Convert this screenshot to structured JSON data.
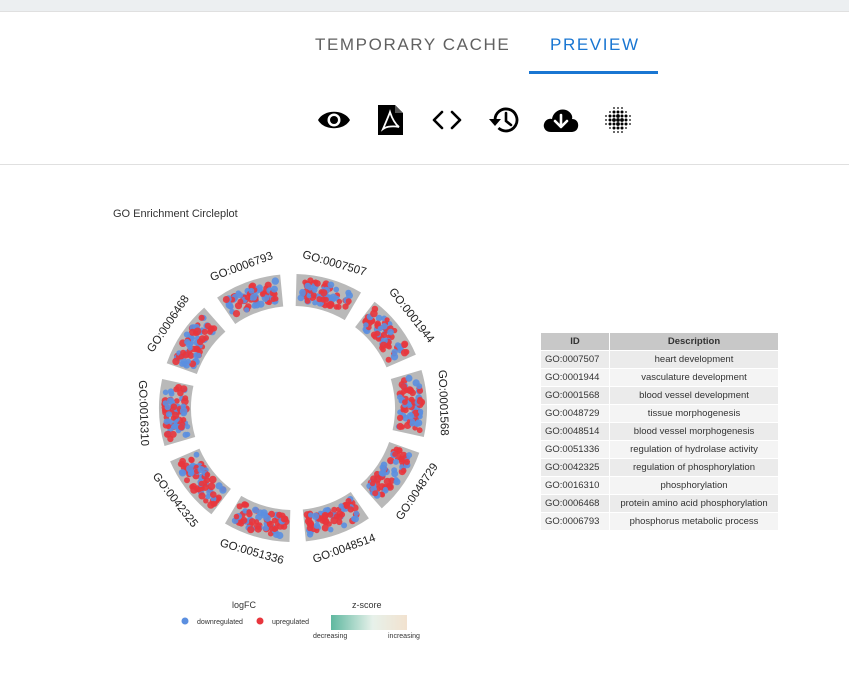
{
  "tabs": [
    {
      "label": "TEMPORARY CACHE",
      "active": false
    },
    {
      "label": "PREVIEW",
      "active": true
    }
  ],
  "toolbar": [
    {
      "icon": "eye-icon"
    },
    {
      "icon": "pdf-icon"
    },
    {
      "icon": "code-icon"
    },
    {
      "icon": "history-icon"
    },
    {
      "icon": "cloud-download-icon"
    },
    {
      "icon": "dots-grid-icon"
    }
  ],
  "plot": {
    "title": "GO Enrichment Circleplot",
    "sectors": [
      "GO:0007507",
      "GO:0001944",
      "GO:0001568",
      "GO:0048729",
      "GO:0048514",
      "GO:0051336",
      "GO:0042325",
      "GO:0016310",
      "GO:0006468",
      "GO:0006793"
    ],
    "table": {
      "headers": [
        "ID",
        "Description"
      ],
      "rows": [
        [
          "GO:0007507",
          "heart development"
        ],
        [
          "GO:0001944",
          "vasculature development"
        ],
        [
          "GO:0001568",
          "blood vessel development"
        ],
        [
          "GO:0048729",
          "tissue morphogenesis"
        ],
        [
          "GO:0048514",
          "blood vessel morphogenesis"
        ],
        [
          "GO:0051336",
          "regulation of hydrolase activity"
        ],
        [
          "GO:0042325",
          "regulation of phosphorylation"
        ],
        [
          "GO:0016310",
          "phosphorylation"
        ],
        [
          "GO:0006468",
          "protein amino acid phosphorylation"
        ],
        [
          "GO:0006793",
          "phosphorus metabolic process"
        ]
      ]
    },
    "legend": {
      "logfc_title": "logFC",
      "down_label": "downregulated",
      "up_label": "upregulated",
      "zscore_title": "z-score",
      "decreasing": "decreasing",
      "increasing": "increasing"
    }
  },
  "colors": {
    "accent": "#1976d2",
    "down": "#5b8fe0",
    "up": "#e8363d",
    "sector_bg": "#b9b9b9",
    "zscore_low": "#5fb8a0",
    "zscore_high": "#f2e2cf"
  }
}
